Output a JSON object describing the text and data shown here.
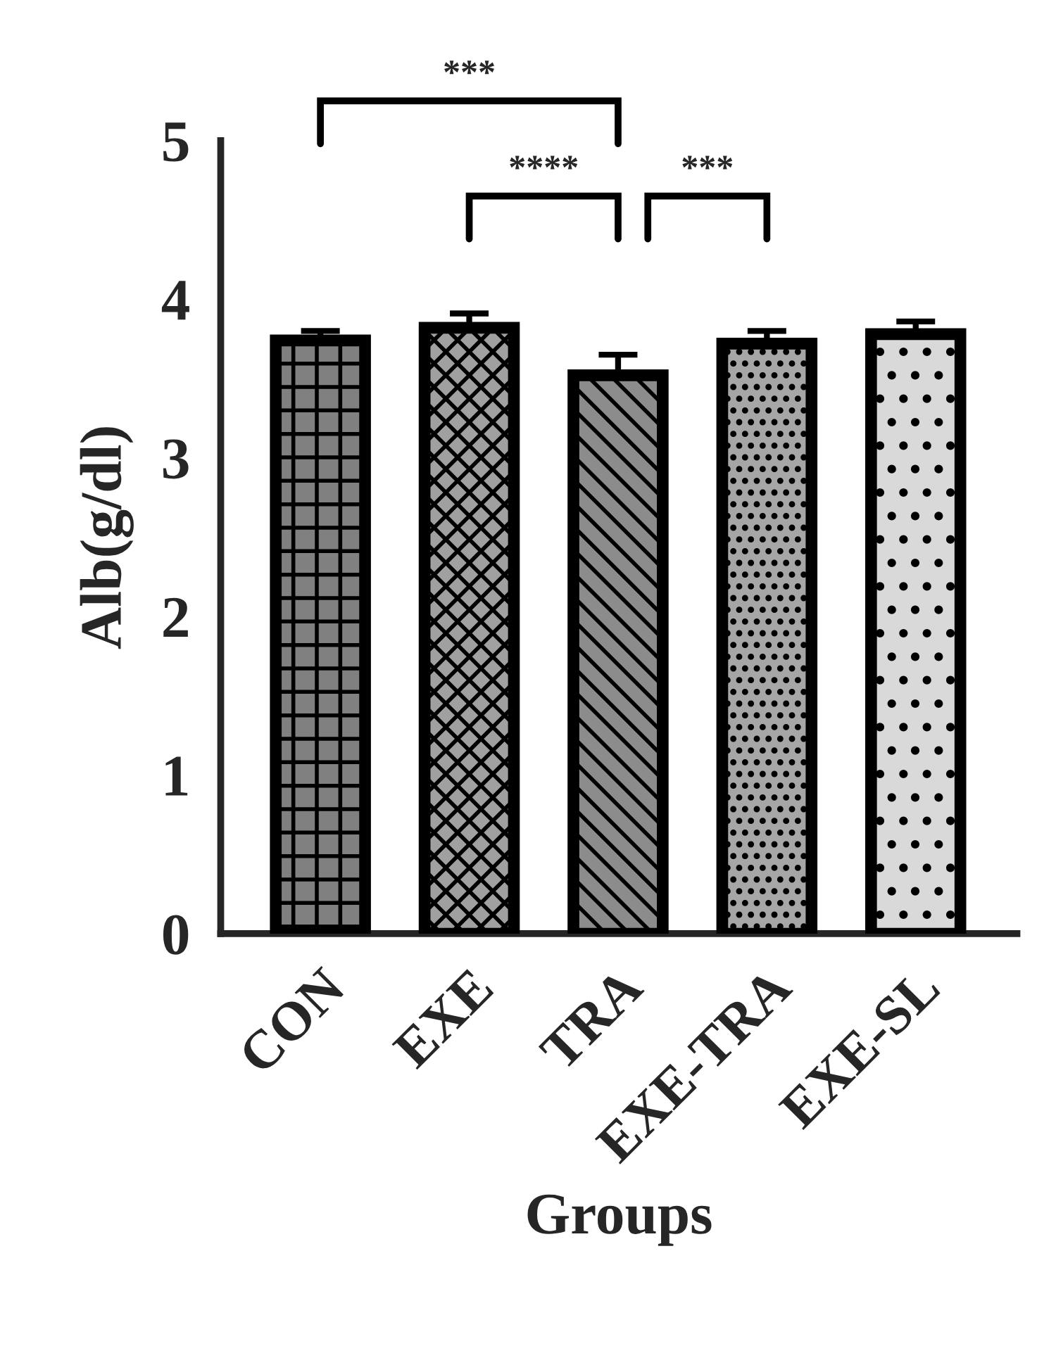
{
  "chart_data": {
    "type": "bar",
    "xlabel": "Groups",
    "ylabel": "Alb(g/dl)",
    "categories": [
      "CON",
      "EXE",
      "TRA",
      "EXE-TRA",
      "EXE-SL"
    ],
    "values": [
      3.74,
      3.82,
      3.52,
      3.72,
      3.78
    ],
    "errors": [
      0.06,
      0.09,
      0.13,
      0.08,
      0.08
    ],
    "colors": [
      "#808080",
      "#a0a0a0",
      "#8c8c8c",
      "#a6a6a6",
      "#d9d9d9"
    ],
    "ylim": [
      0,
      5
    ],
    "yticks": [
      0,
      1,
      2,
      3,
      4,
      5
    ],
    "grid": false,
    "legend": false,
    "annotations": [
      "***",
      "****",
      "***"
    ]
  }
}
